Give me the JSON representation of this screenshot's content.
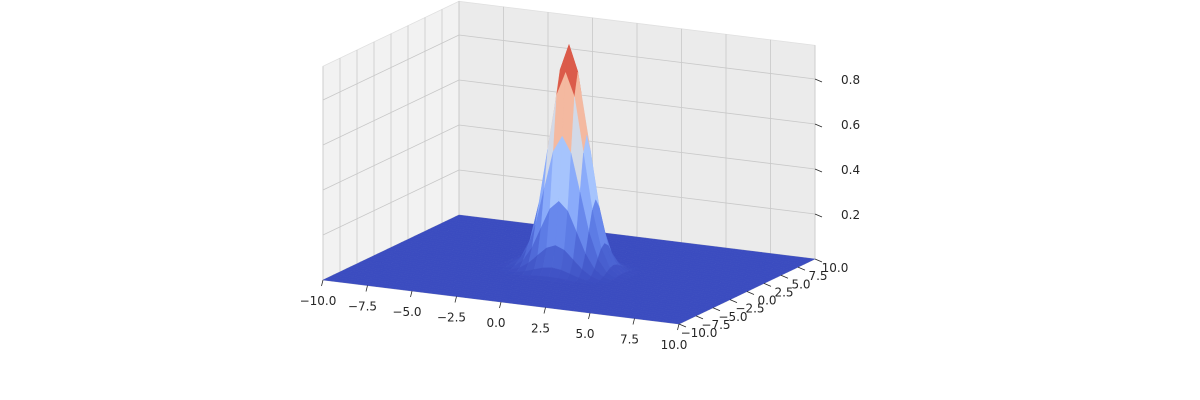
{
  "chart_data": {
    "type": "surface3d",
    "title": "",
    "xlabel": "",
    "ylabel": "",
    "zlabel": "",
    "xlim": [
      -10,
      10
    ],
    "ylim": [
      -10,
      10
    ],
    "zlim": [
      0,
      0.95
    ],
    "x_ticks": [
      -10.0,
      -7.5,
      -5.0,
      -2.5,
      0.0,
      2.5,
      5.0,
      7.5,
      10.0
    ],
    "y_ticks": [
      -10.0,
      -7.5,
      -5.0,
      -2.5,
      0.0,
      2.5,
      5.0,
      7.5,
      10.0
    ],
    "z_ticks": [
      0.2,
      0.4,
      0.6,
      0.8
    ],
    "x_tick_labels": [
      "−10.0",
      "−7.5",
      "−5.0",
      "−2.5",
      "0.0",
      "2.5",
      "5.0",
      "7.5",
      "10.0"
    ],
    "y_tick_labels": [
      "−10.0",
      "−7.5",
      "−5.0",
      "−2.5",
      "0.0",
      "2.5",
      "5.0",
      "7.5",
      "10.0"
    ],
    "z_tick_labels": [
      "0.2",
      "0.4",
      "0.6",
      "0.8"
    ],
    "surface": {
      "function": "z = exp(-(x^2 + y^2) / 2)",
      "peak": {
        "x": 0,
        "y": 0,
        "z": 1.0
      },
      "x_range": [
        -10,
        10
      ],
      "y_range": [
        -10,
        10
      ],
      "colormap": "coolwarm",
      "colormap_low": "#3b4cc0",
      "colormap_mid": "#dddddd",
      "colormap_high": "#b40426"
    },
    "grid": true
  }
}
